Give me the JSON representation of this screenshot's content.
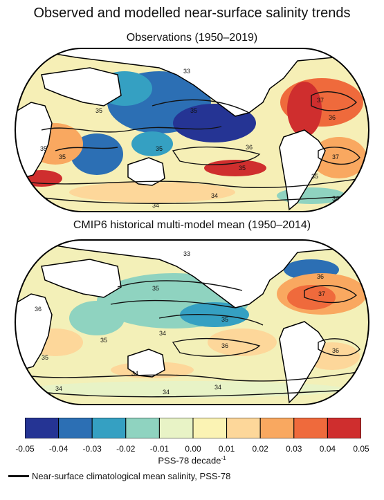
{
  "title": "Observed and modelled near-surface salinity trends",
  "panels": [
    {
      "subtitle": "Observations (1950–2019)",
      "contour_labels": [
        "33",
        "35",
        "35",
        "35",
        "35",
        "35",
        "36",
        "35",
        "37",
        "36",
        "37",
        "35",
        "34",
        "34",
        "34"
      ]
    },
    {
      "subtitle": "CMIP6 historical multi-model mean (1950–2014)",
      "contour_labels": [
        "33",
        "35",
        "35",
        "36",
        "34",
        "35",
        "36",
        "34",
        "36",
        "37",
        "36",
        "35",
        "34",
        "34",
        "34"
      ]
    }
  ],
  "colorbar": {
    "ticks": [
      "-0.05",
      "-0.04",
      "-0.03",
      "-0.02",
      "-0.01",
      "0.00",
      "0.01",
      "0.02",
      "0.03",
      "0.04",
      "0.05"
    ],
    "colors": [
      "#253494",
      "#2c6fb4",
      "#35a0c2",
      "#8fd3c0",
      "#e8f3c6",
      "#fbf3b4",
      "#fdd79a",
      "#f9a860",
      "#ef6a3c",
      "#cf2e2e"
    ],
    "units": "PSS-78 decade",
    "units_sup": "-1"
  },
  "legend": {
    "label": "Near-surface climatological mean salinity, PSS-78"
  }
}
